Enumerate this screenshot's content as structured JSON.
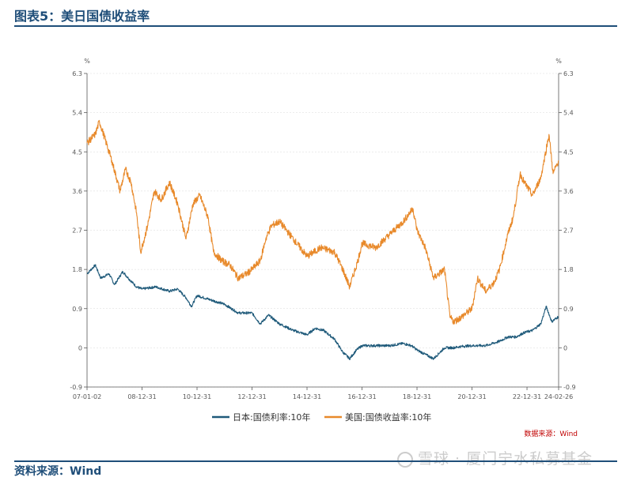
{
  "header": {
    "title": "图表5：美日国债收益率"
  },
  "footer": {
    "source": "资料来源：Wind"
  },
  "watermark": {
    "text": "雪球 · 厦门宁水私募基金"
  },
  "colors": {
    "us": "#e8892a",
    "japan": "#1f5a7a",
    "title": "#1f4e79",
    "note": "#c00000"
  },
  "chart_data": {
    "type": "line",
    "title": "",
    "left_unit": "%",
    "right_unit": "%",
    "ylim": [
      -0.9,
      6.3
    ],
    "y_ticks": [
      -0.9,
      0,
      0.9,
      1.8,
      2.7,
      3.6,
      4.5,
      5.4,
      6.3
    ],
    "y_tick_labels": [
      "-0.9",
      "0",
      "0.9",
      "1.8",
      "2.7",
      "3.6",
      "4.5",
      "5.4",
      "6.3"
    ],
    "xlim": [
      2007.0,
      2024.15
    ],
    "x_ticks": [
      2007.0,
      2009.0,
      2011.0,
      2013.0,
      2015.0,
      2017.0,
      2019.0,
      2021.0,
      2023.0,
      2024.15
    ],
    "x_tick_labels": [
      "07-01-02",
      "08-12-31",
      "10-12-31",
      "12-12-31",
      "14-12-31",
      "16-12-31",
      "18-12-31",
      "20-12-31",
      "22-12-31",
      "24-02-26"
    ],
    "series": [
      {
        "name": "日本:国债利率:10年",
        "color": "#1f5a7a",
        "x": [
          2007.0,
          2007.3,
          2007.5,
          2007.8,
          2008.0,
          2008.3,
          2008.5,
          2008.8,
          2009.0,
          2009.5,
          2010.0,
          2010.3,
          2010.6,
          2010.8,
          2011.0,
          2011.5,
          2012.0,
          2012.5,
          2013.0,
          2013.3,
          2013.6,
          2014.0,
          2014.5,
          2015.0,
          2015.3,
          2015.6,
          2016.0,
          2016.3,
          2016.55,
          2016.8,
          2017.0,
          2017.5,
          2018.0,
          2018.5,
          2018.8,
          2019.0,
          2019.3,
          2019.6,
          2020.0,
          2020.3,
          2020.6,
          2021.0,
          2021.5,
          2022.0,
          2022.3,
          2022.6,
          2022.9,
          2023.2,
          2023.5,
          2023.7,
          2023.9,
          2024.15
        ],
        "values": [
          1.7,
          1.9,
          1.6,
          1.7,
          1.45,
          1.75,
          1.6,
          1.4,
          1.35,
          1.4,
          1.3,
          1.35,
          1.15,
          0.95,
          1.2,
          1.1,
          1.0,
          0.8,
          0.8,
          0.55,
          0.75,
          0.55,
          0.4,
          0.3,
          0.45,
          0.4,
          0.2,
          -0.1,
          -0.25,
          -0.05,
          0.05,
          0.05,
          0.05,
          0.1,
          0.05,
          -0.05,
          -0.15,
          -0.25,
          0.0,
          0.0,
          0.03,
          0.05,
          0.05,
          0.15,
          0.25,
          0.25,
          0.35,
          0.4,
          0.55,
          0.95,
          0.6,
          0.72
        ]
      },
      {
        "name": "美国:国债收益率:10年",
        "color": "#e8892a",
        "x": [
          2007.0,
          2007.3,
          2007.45,
          2007.7,
          2007.9,
          2008.2,
          2008.4,
          2008.6,
          2008.8,
          2008.95,
          2009.2,
          2009.45,
          2009.7,
          2010.0,
          2010.3,
          2010.6,
          2010.85,
          2011.1,
          2011.4,
          2011.6,
          2011.9,
          2012.2,
          2012.5,
          2012.8,
          2013.0,
          2013.3,
          2013.5,
          2013.7,
          2014.0,
          2014.5,
          2015.0,
          2015.5,
          2016.0,
          2016.3,
          2016.55,
          2016.85,
          2017.0,
          2017.5,
          2018.0,
          2018.5,
          2018.85,
          2019.0,
          2019.3,
          2019.6,
          2020.0,
          2020.2,
          2020.35,
          2020.6,
          2021.0,
          2021.2,
          2021.5,
          2021.8,
          2022.0,
          2022.3,
          2022.5,
          2022.75,
          2022.9,
          2023.2,
          2023.5,
          2023.8,
          2023.95,
          2024.15
        ],
        "values": [
          4.7,
          4.9,
          5.2,
          4.7,
          4.3,
          3.6,
          4.1,
          3.8,
          3.1,
          2.2,
          2.8,
          3.6,
          3.4,
          3.8,
          3.3,
          2.5,
          3.3,
          3.5,
          3.0,
          2.2,
          2.0,
          1.9,
          1.6,
          1.7,
          1.8,
          2.0,
          2.5,
          2.8,
          2.9,
          2.5,
          2.1,
          2.3,
          2.2,
          1.8,
          1.4,
          2.0,
          2.4,
          2.3,
          2.6,
          2.9,
          3.2,
          2.7,
          2.3,
          1.6,
          1.8,
          0.7,
          0.6,
          0.7,
          0.9,
          1.6,
          1.3,
          1.5,
          1.8,
          2.6,
          3.0,
          4.0,
          3.8,
          3.5,
          3.9,
          4.9,
          4.0,
          4.3
        ]
      }
    ],
    "legend": {
      "position": "bottom"
    },
    "note": "数据来源：Wind"
  }
}
